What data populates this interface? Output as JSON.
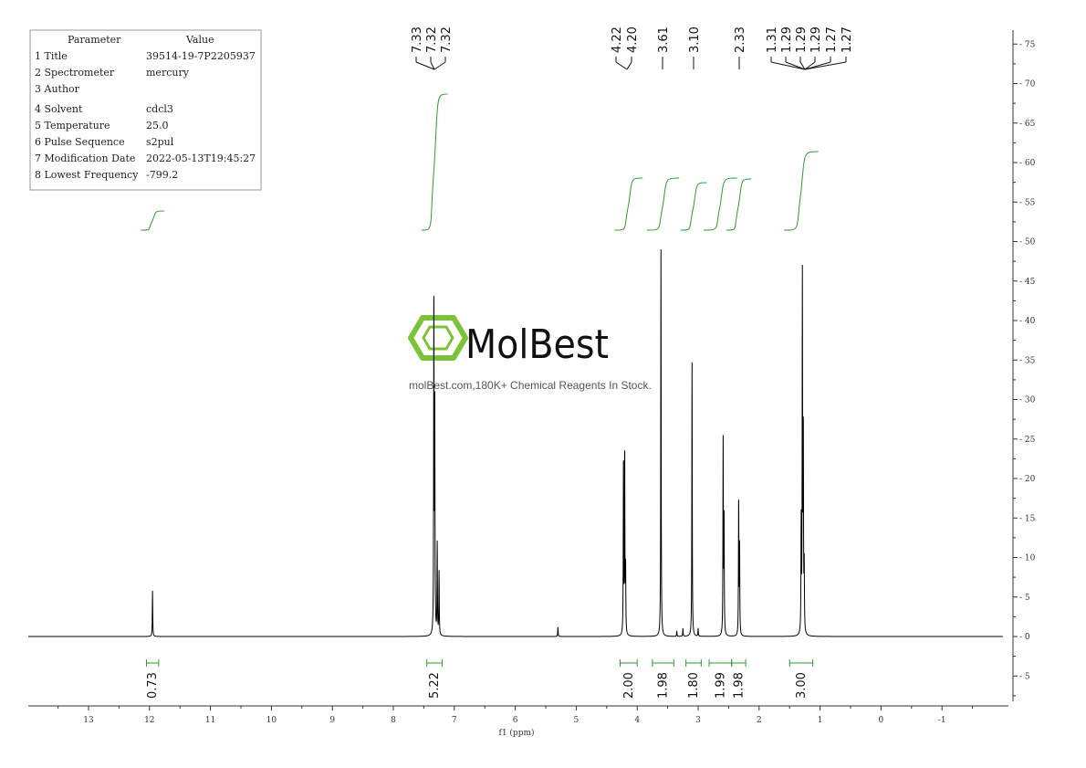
{
  "parameters": {
    "header": [
      "Parameter",
      "Value"
    ],
    "rows": [
      [
        "1 Title",
        "39514-19-7P2205937"
      ],
      [
        "2 Spectrometer",
        "mercury"
      ],
      [
        "3 Author",
        ""
      ],
      [
        "4 Solvent",
        "cdcl3"
      ],
      [
        "5 Temperature",
        "25.0"
      ],
      [
        "6 Pulse Sequence",
        "s2pul"
      ],
      [
        "7 Modification Date",
        "2022-05-13T19:45:27"
      ],
      [
        "8 Lowest Frequency",
        "-799.2"
      ]
    ]
  },
  "watermark": {
    "brand": "MolBest",
    "tagline": "molBest.com,180K+ Chemical Reagents In Stock."
  },
  "colors": {
    "spectrum": "#000000",
    "integral": "#2e9e2e",
    "logo": "#7cc33a"
  },
  "chart_data": {
    "type": "line",
    "xlabel": "f1 (ppm)",
    "x_ticks": [
      "13",
      "12",
      "11",
      "10",
      "9",
      "8",
      "7",
      "6",
      "5",
      "4",
      "3",
      "2",
      "1",
      "0",
      "-1"
    ],
    "xlim": [
      14.0,
      -2.0
    ],
    "y_ticks": [
      "75",
      "70",
      "65",
      "60",
      "55",
      "50",
      "45",
      "40",
      "35",
      "30",
      "25",
      "20",
      "15",
      "10",
      "5",
      "0",
      "-5"
    ],
    "ylim": [
      -8.5,
      77
    ],
    "peak_groups": [
      {
        "labels": [
          "7.33",
          "7.32",
          "7.32"
        ]
      },
      {
        "labels": [
          "4.22",
          "4.20"
        ]
      },
      {
        "labels": [
          "3.61"
        ]
      },
      {
        "labels": [
          "3.10"
        ]
      },
      {
        "labels": [
          "2.33"
        ]
      },
      {
        "labels": [
          "1.31",
          "1.29",
          "1.29",
          "1.29",
          "1.27",
          "1.27"
        ]
      }
    ],
    "peaks": [
      {
        "ppm": 11.95,
        "height": 5.8
      },
      {
        "ppm": 7.335,
        "height": 43.5
      },
      {
        "ppm": 7.32,
        "height": 28
      },
      {
        "ppm": 7.28,
        "height": 11.5
      },
      {
        "ppm": 7.25,
        "height": 8
      },
      {
        "ppm": 5.3,
        "height": 1.2
      },
      {
        "ppm": 4.225,
        "height": 22.5
      },
      {
        "ppm": 4.205,
        "height": 23.5
      },
      {
        "ppm": 4.19,
        "height": 8
      },
      {
        "ppm": 3.61,
        "height": 49
      },
      {
        "ppm": 3.35,
        "height": 0.7
      },
      {
        "ppm": 3.25,
        "height": 1.0
      },
      {
        "ppm": 3.1,
        "height": 34.7
      },
      {
        "ppm": 3.0,
        "height": 1.0
      },
      {
        "ppm": 2.59,
        "height": 24.5
      },
      {
        "ppm": 2.575,
        "height": 15
      },
      {
        "ppm": 2.335,
        "height": 17.5
      },
      {
        "ppm": 2.32,
        "height": 11
      },
      {
        "ppm": 1.31,
        "height": 14
      },
      {
        "ppm": 1.29,
        "height": 44.7
      },
      {
        "ppm": 1.275,
        "height": 25.3
      },
      {
        "ppm": 1.26,
        "height": 8
      }
    ],
    "integrals": [
      {
        "label": "0.73",
        "from": 12.05,
        "to": 11.85
      },
      {
        "label": "5.22",
        "from": 7.45,
        "to": 7.2
      },
      {
        "label": "2.00",
        "from": 4.28,
        "to": 4.0
      },
      {
        "label": "1.98",
        "from": 3.75,
        "to": 3.4
      },
      {
        "label": "1.80",
        "from": 3.2,
        "to": 2.95
      },
      {
        "label": "1.99",
        "from": 2.82,
        "to": 2.45
      },
      {
        "label": "1.98",
        "from": 2.45,
        "to": 2.22
      },
      {
        "label": "3.00",
        "from": 1.5,
        "to": 1.12
      }
    ]
  }
}
